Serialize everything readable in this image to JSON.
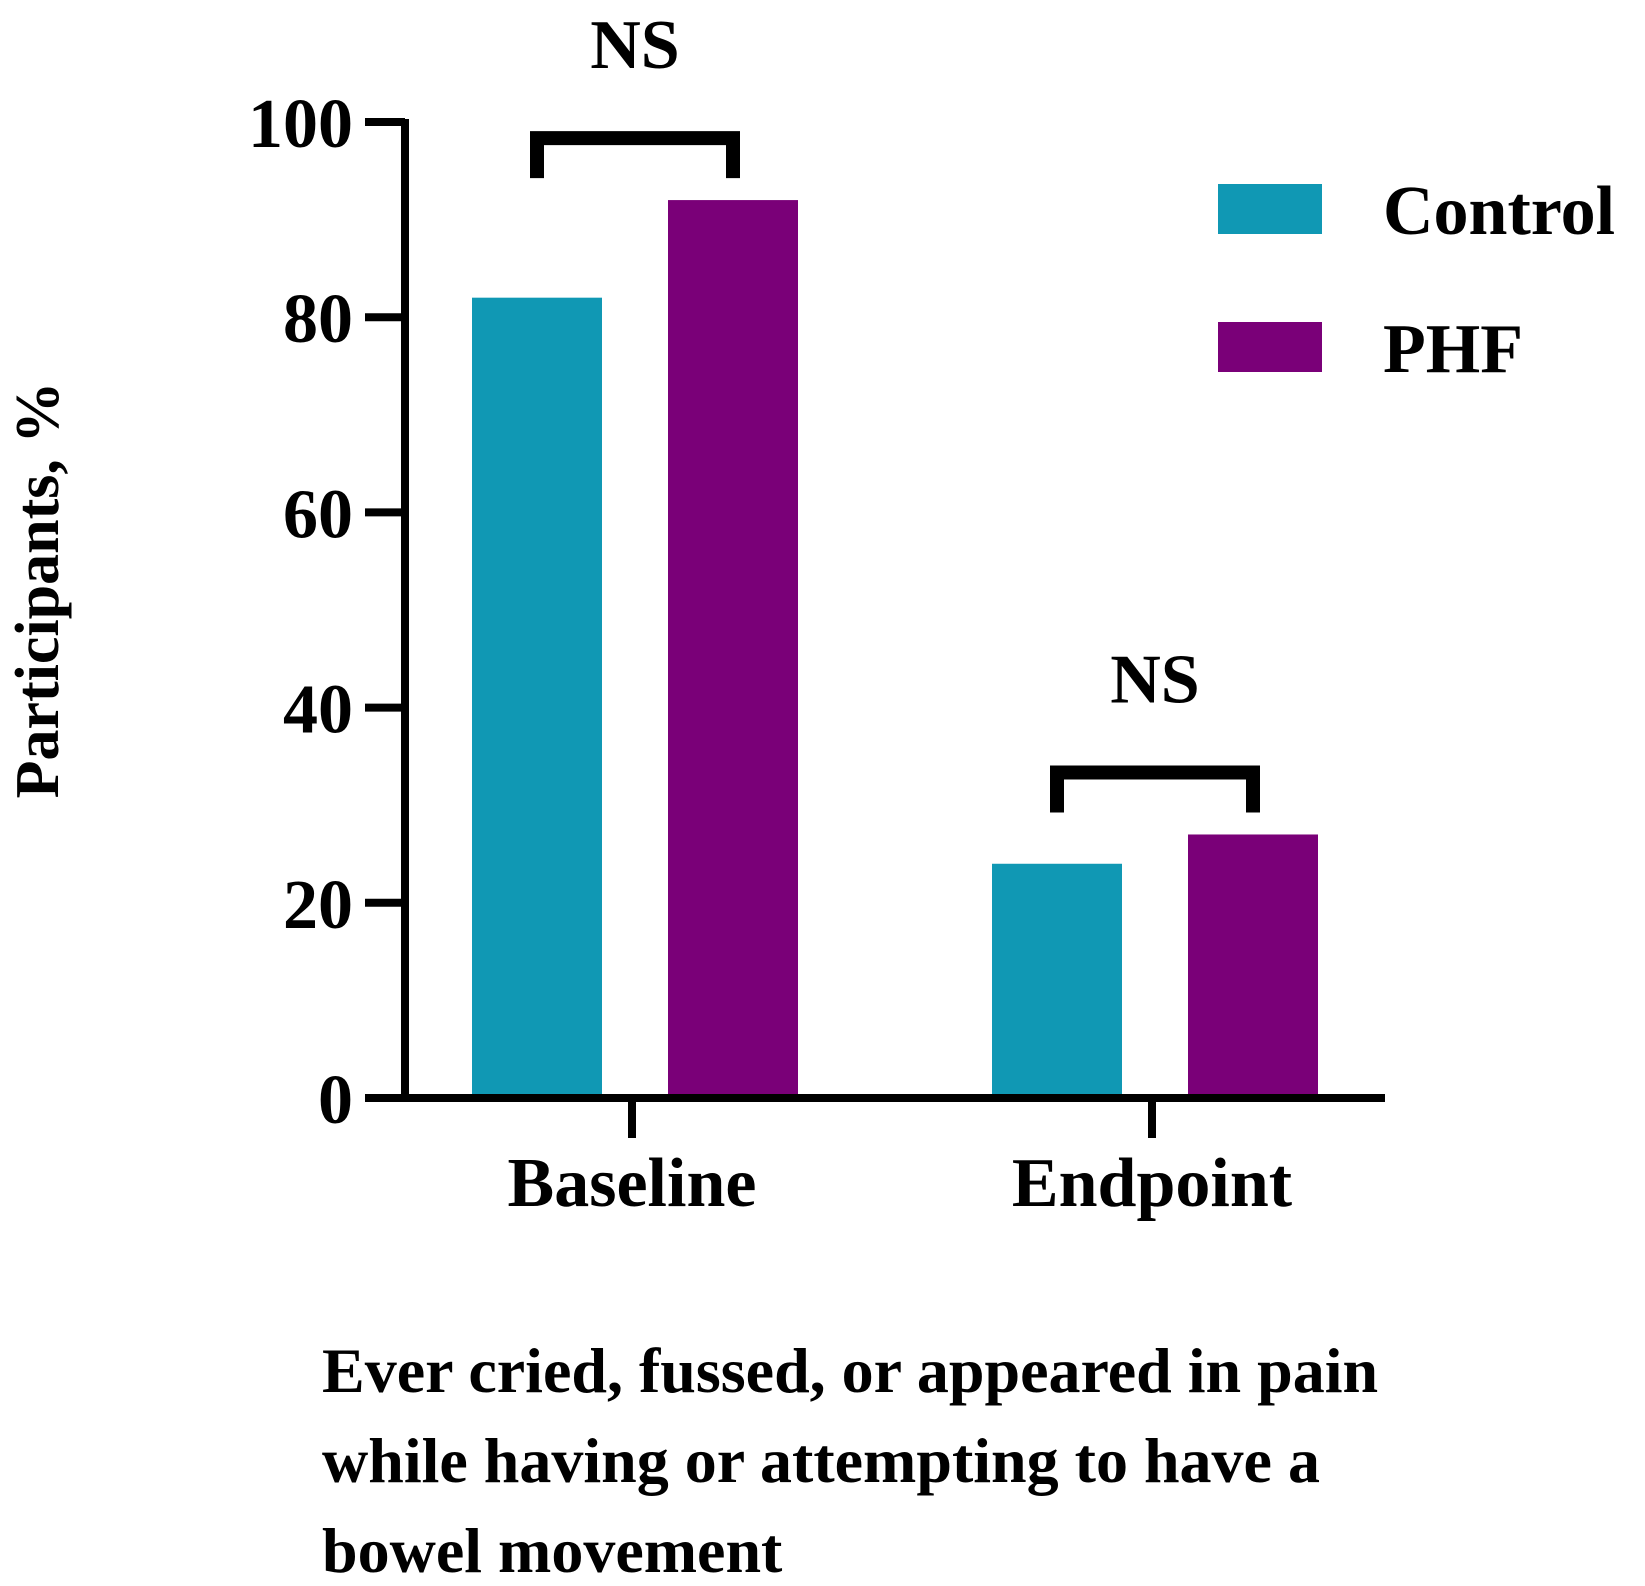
{
  "chart_data": {
    "type": "bar",
    "categories": [
      "Baseline",
      "Endpoint"
    ],
    "series": [
      {
        "name": "Control",
        "values": [
          82,
          24
        ],
        "color": "#1098b4"
      },
      {
        "name": "PHF",
        "values": [
          92,
          27
        ],
        "color": "#7a0078"
      }
    ],
    "ylabel": "Participants, %",
    "ylim": [
      0,
      100
    ],
    "yticks": [
      0,
      20,
      40,
      60,
      80,
      100
    ],
    "grid": false,
    "legend": "top-right",
    "significance": [
      {
        "category": "Baseline",
        "label": "NS"
      },
      {
        "category": "Endpoint",
        "label": "NS"
      }
    ],
    "caption_lines": [
      "Ever cried, fussed, or appeared in pain",
      "while having or attempting to have a",
      "bowel movement"
    ]
  }
}
